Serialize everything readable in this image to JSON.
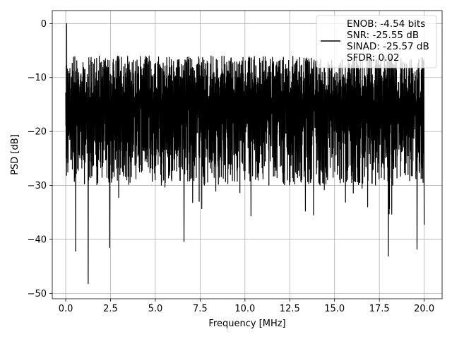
{
  "chart_data": {
    "type": "line",
    "xlabel": "Frequency [MHz]",
    "ylabel": "PSD [dB]",
    "xlim": [
      -0.75,
      21.0
    ],
    "ylim": [
      -51.0,
      2.4
    ],
    "xticks": [
      0.0,
      2.5,
      5.0,
      7.5,
      10.0,
      12.5,
      15.0,
      17.5,
      20.0
    ],
    "xtick_labels": [
      "0.0",
      "2.5",
      "5.0",
      "7.5",
      "10.0",
      "12.5",
      "15.0",
      "17.5",
      "20.0"
    ],
    "yticks": [
      0,
      -10,
      -20,
      -30,
      -40,
      -50
    ],
    "ytick_labels": [
      "0",
      "−10",
      "−20",
      "−30",
      "−40",
      "−50"
    ],
    "grid": true,
    "legend_position": "top-right",
    "series": [
      {
        "label": [
          "ENOB: -4.54 bits",
          "SNR: -25.55 dB",
          "SINAD: -25.57 dB",
          "SFDR: 0.02"
        ],
        "color": "#000000",
        "x_range_mhz": [
          0.0,
          20.0
        ],
        "notable_points": [
          {
            "x": 0.05,
            "y": 0.0
          },
          {
            "x": 0.55,
            "y": -42.2
          },
          {
            "x": 1.25,
            "y": -48.2
          },
          {
            "x": 2.45,
            "y": -41.5
          },
          {
            "x": 6.6,
            "y": -40.4
          },
          {
            "x": 18.0,
            "y": -43.1
          },
          {
            "x": 19.6,
            "y": -41.8
          },
          {
            "x": 20.0,
            "y": -37.3
          }
        ],
        "typical_band_db": [
          -8.0,
          -28.0
        ],
        "upper_envelope_db": -5.0,
        "lower_envelope_db": -35.0
      }
    ]
  }
}
